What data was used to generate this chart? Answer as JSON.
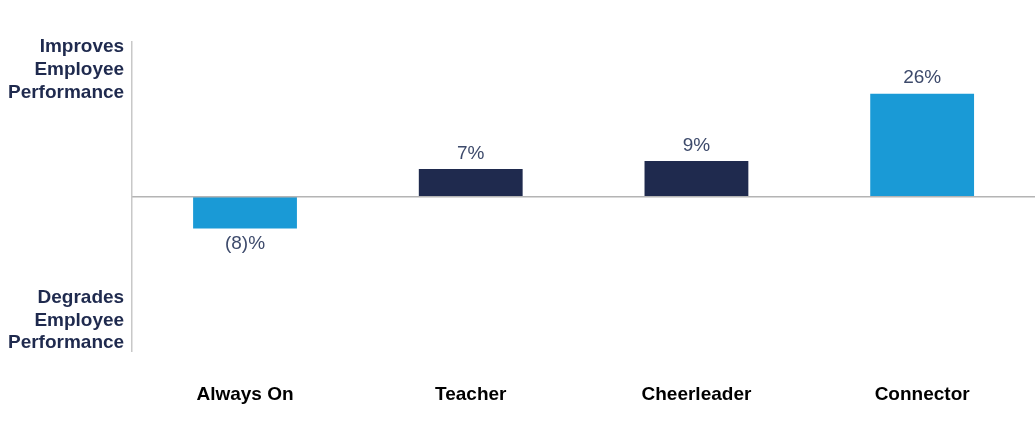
{
  "chart_data": {
    "type": "bar",
    "categories": [
      "Always On",
      "Teacher",
      "Cheerleader",
      "Connector"
    ],
    "values": [
      -8,
      7,
      9,
      26
    ],
    "colors": [
      "#1a9ad6",
      "#1f2a4e",
      "#1f2a4e",
      "#1a9ad6"
    ],
    "value_labels": [
      "(8)%",
      "7%",
      "9%",
      "26%"
    ],
    "annotations": [
      "Improves Employee Performance",
      "Degrades Employee Performance"
    ],
    "grid": false,
    "legend": false
  }
}
